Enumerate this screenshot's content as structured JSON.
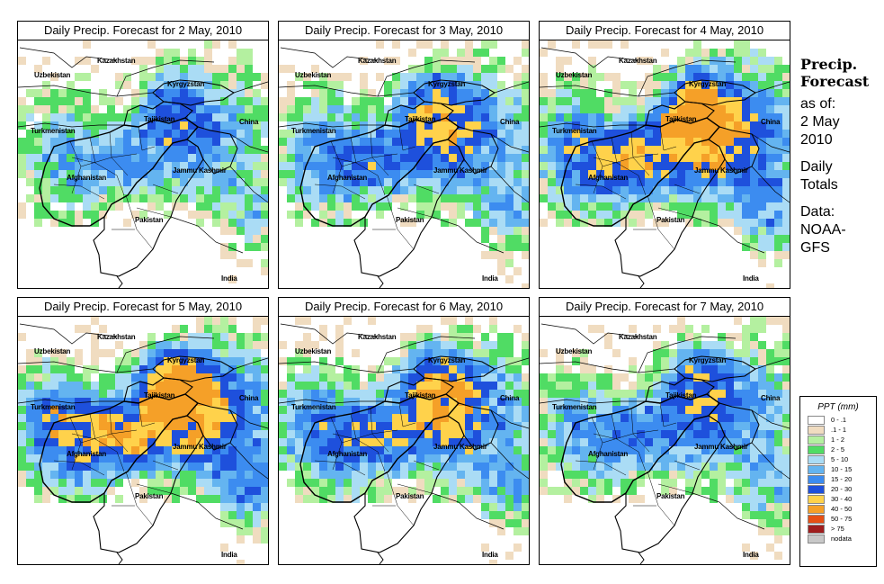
{
  "panels": [
    {
      "title": "Daily Precip. Forecast for  2 May, 2010",
      "seed": 1,
      "intensity": 0.7
    },
    {
      "title": "Daily Precip. Forecast for  3 May, 2010",
      "seed": 2,
      "intensity": 0.9
    },
    {
      "title": "Daily Precip. Forecast for  4 May, 2010",
      "seed": 3,
      "intensity": 1.2
    },
    {
      "title": "Daily Precip. Forecast for  5 May, 2010",
      "seed": 4,
      "intensity": 1.25
    },
    {
      "title": "Daily Precip. Forecast for  6 May, 2010",
      "seed": 5,
      "intensity": 1.0
    },
    {
      "title": "Daily Precip. Forecast for  7 May, 2010",
      "seed": 6,
      "intensity": 0.8
    }
  ],
  "map_labels": {
    "kazakhstan": "Kazakhstan",
    "uzbekistan": "Uzbekistan",
    "kyrgyzstan": "Kyrgyzstan",
    "tajikistan": "Tajikistan",
    "china": "China",
    "turkmenistan": "Turkmenistan",
    "afghanistan": "Afghanistan",
    "jammu_kashmir": "Jammu Kashmir",
    "pakistan": "Pakistan",
    "india": "India"
  },
  "sidebar": {
    "title_line1": "Precip.",
    "title_line2": "Forecast",
    "asof_line1": "as of:",
    "asof_line2": "2 May",
    "asof_line3": "2010",
    "daily_line1": "Daily",
    "daily_line2": "Totals",
    "data_line1": "Data:",
    "data_line2": "NOAA-",
    "data_line3": "GFS"
  },
  "legend": {
    "title": "PPT (mm)",
    "items": [
      {
        "label": "0 - .1",
        "color": "#ffffff"
      },
      {
        "label": ".1 - 1",
        "color": "#f0dcc0"
      },
      {
        "label": "1 - 2",
        "color": "#b4f0a0"
      },
      {
        "label": "2 - 5",
        "color": "#50dc64"
      },
      {
        "label": "5 - 10",
        "color": "#aadcf5"
      },
      {
        "label": "10 - 15",
        "color": "#64b4f0"
      },
      {
        "label": "15 - 20",
        "color": "#3c8cf0"
      },
      {
        "label": "20 - 30",
        "color": "#1e50dc"
      },
      {
        "label": "30 - 40",
        "color": "#ffd24b"
      },
      {
        "label": "40 - 50",
        "color": "#f5a028"
      },
      {
        "label": "50 - 75",
        "color": "#e65014"
      },
      {
        "label": "> 75",
        "color": "#a01e1e"
      },
      {
        "label": "nodata",
        "color": "#c8c8c8"
      }
    ]
  }
}
